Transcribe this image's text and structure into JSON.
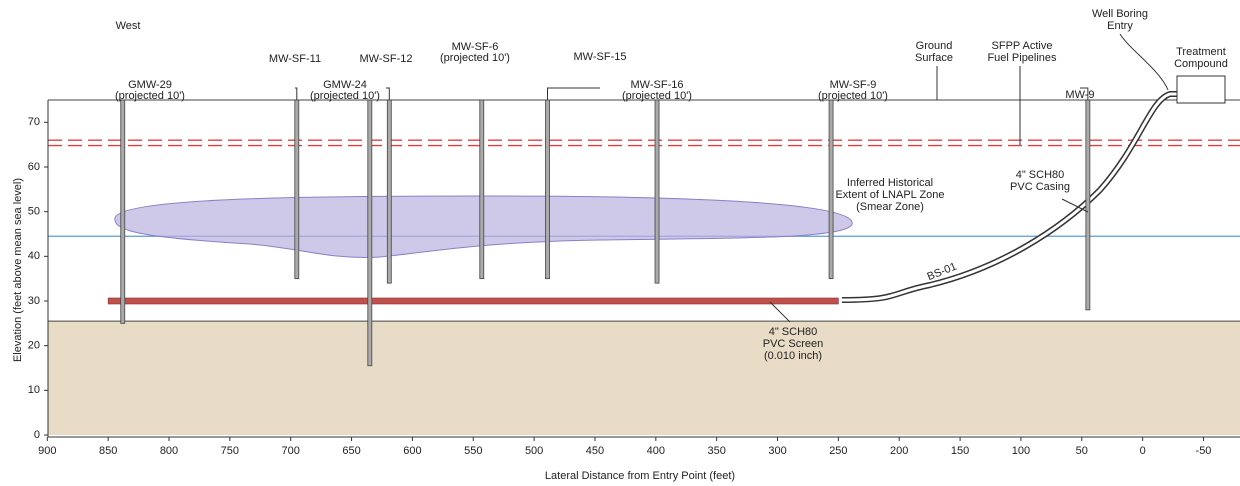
{
  "chart_data": {
    "type": "cross-section",
    "xlabel": "Lateral Distance from Entry Point (feet)",
    "ylabel": "Elevation (feet above mean sea level)",
    "xlim": [
      906,
      -80
    ],
    "ylim": [
      0,
      75
    ],
    "xticks": [
      900,
      850,
      800,
      750,
      700,
      650,
      600,
      550,
      500,
      450,
      400,
      350,
      300,
      250,
      200,
      150,
      100,
      50,
      0,
      -50
    ],
    "yticks": [
      0,
      10,
      20,
      30,
      40,
      50,
      60,
      70
    ],
    "ground_surface": 75,
    "native_top": 25.5,
    "water_level": 44.5,
    "pipelines": [
      66,
      64.8
    ],
    "screen": {
      "from": 850,
      "to": 250,
      "elevation": 30
    },
    "wells": [
      {
        "name": "GMW-29",
        "note": "(projected 10')",
        "x": 838,
        "bottom": 25
      },
      {
        "name": "MW-SF-11",
        "x": 695,
        "bottom": 35
      },
      {
        "name": "GMW-24",
        "note": "(projected 10')",
        "x": 635,
        "bottom": 15.5
      },
      {
        "name": "MW-SF-12",
        "x": 619,
        "bottom": 34
      },
      {
        "name": "MW-SF-6",
        "note": "(projected 10')",
        "x": 543,
        "bottom": 35
      },
      {
        "name": "MW-SF-15",
        "x": 489,
        "bottom": 35
      },
      {
        "name": "MW-SF-16",
        "note": "(projected 10')",
        "x": 399,
        "bottom": 34
      },
      {
        "name": "MW-SF-9",
        "note": "(projected 10')",
        "x": 256,
        "bottom": 35
      },
      {
        "name": "MW-9",
        "x": 45,
        "bottom": 28
      }
    ],
    "annotations": {
      "west": "West",
      "ground": [
        "Ground",
        "Surface"
      ],
      "pipelines": [
        "SFPP Active",
        "Fuel Pipelines"
      ],
      "entry": [
        "Well Boring",
        "Entry"
      ],
      "compound": [
        "Treatment",
        "Compound"
      ],
      "smear": [
        "Inferred Historical",
        "Extent of LNAPL Zone",
        "(Smear Zone)"
      ],
      "casing": [
        "4\" SCH80",
        "PVC Casing"
      ],
      "boring": "BS-01",
      "screen": [
        "4\" SCH80",
        "PVC Screen",
        "(0.010 inch)"
      ]
    }
  }
}
